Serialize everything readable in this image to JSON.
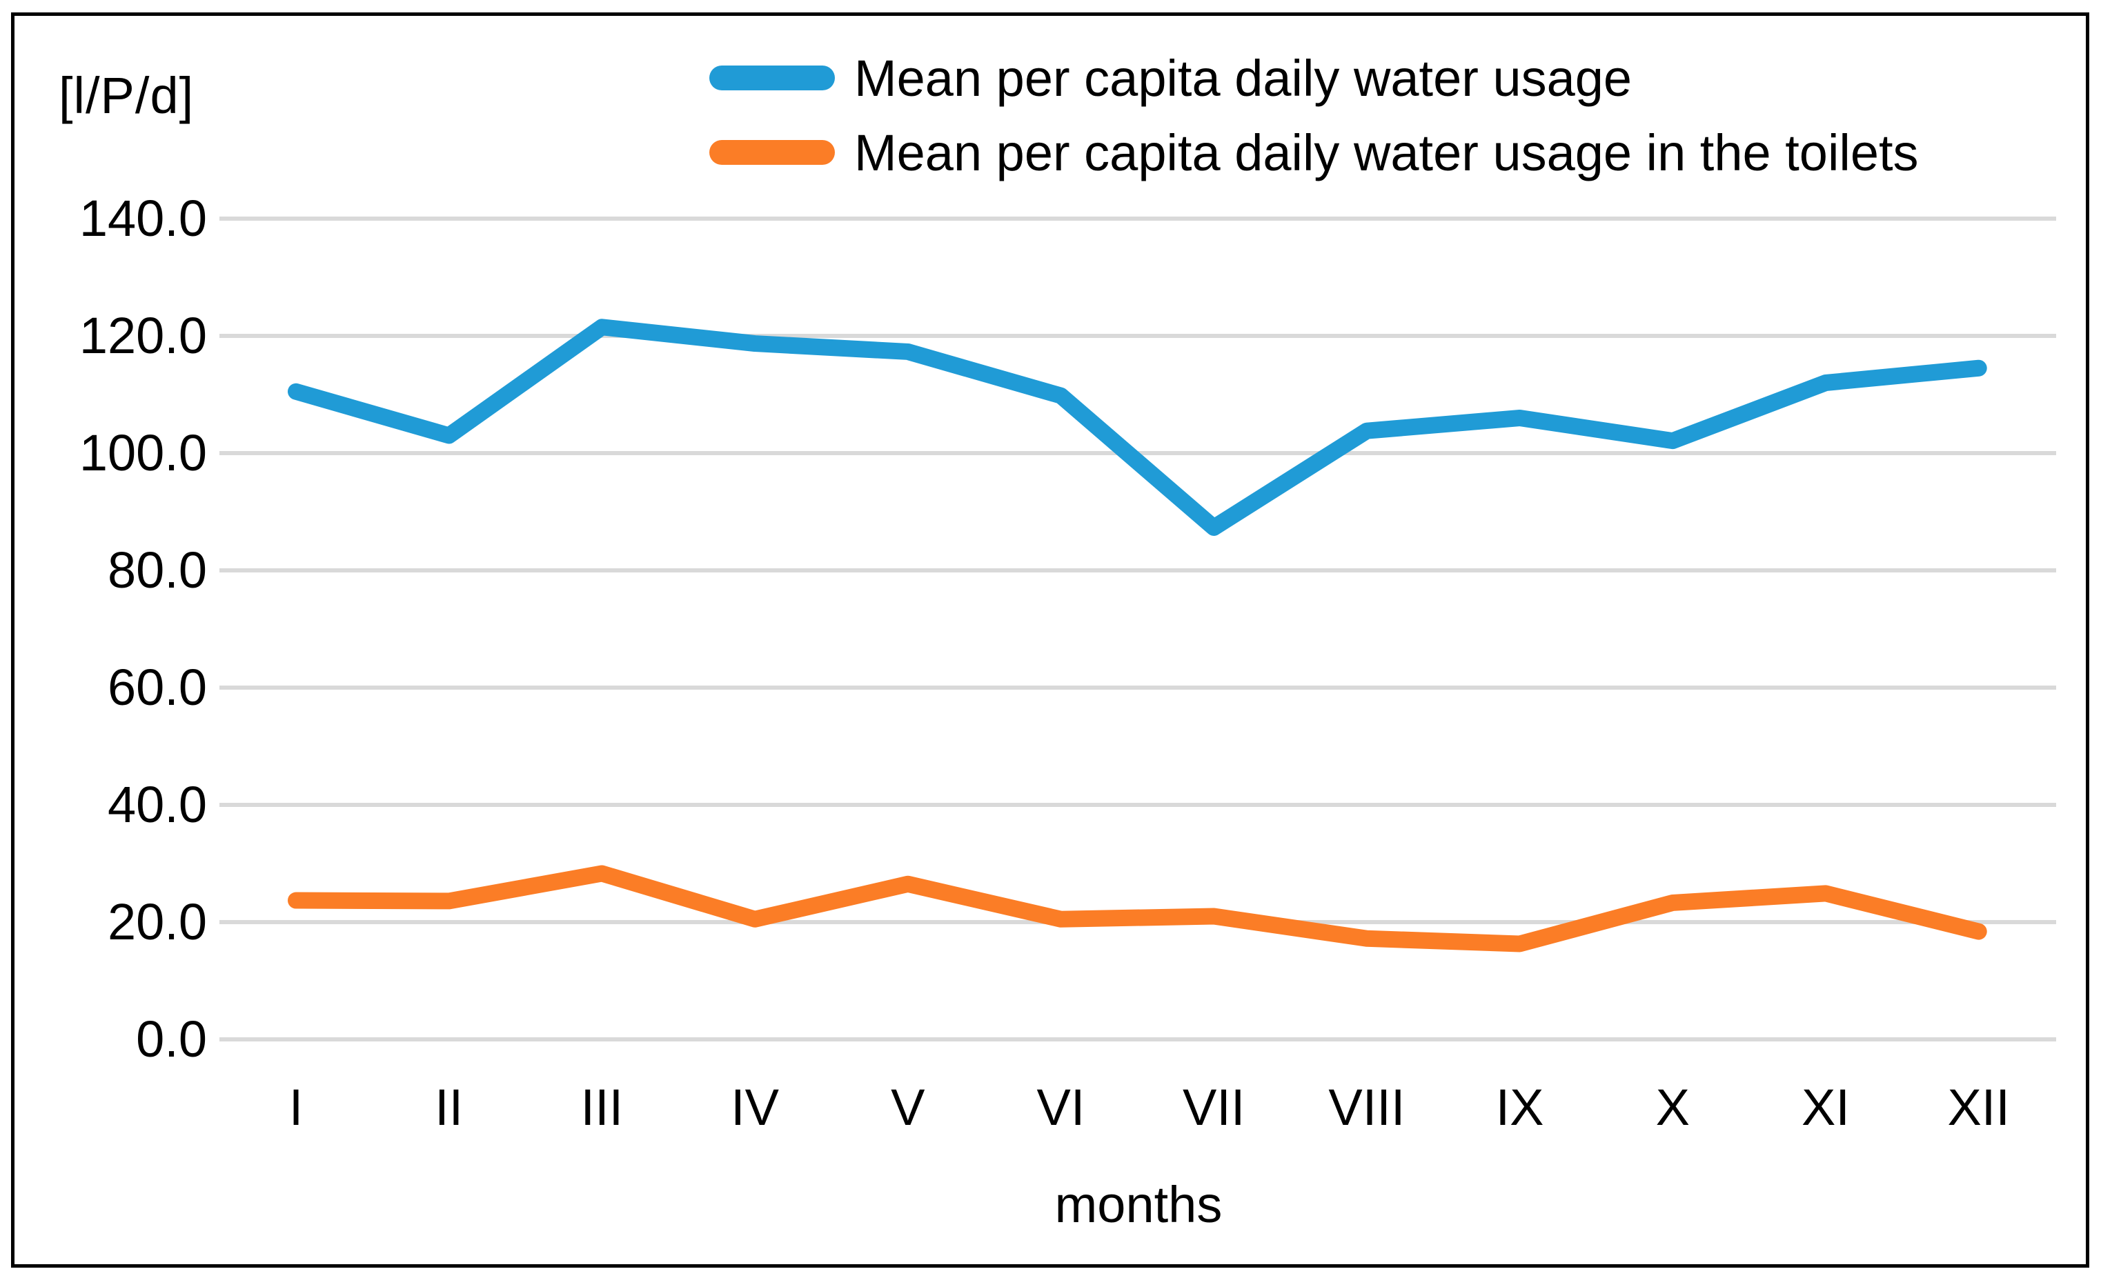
{
  "page": {
    "background": "#FFFFFF",
    "border_color": "#000000"
  },
  "y_axis": {
    "unit_label": "[l/P/d]",
    "tick_labels": [
      "0.0",
      "20.0",
      "40.0",
      "60.0",
      "80.0",
      "100.0",
      "120.0",
      "140.0"
    ]
  },
  "x_axis": {
    "title": "months"
  },
  "legend": {
    "items": [
      {
        "label": "Mean per capita daily water usage",
        "color": "#209BD6"
      },
      {
        "label": "Mean per capita daily water usage in the toilets",
        "color": "#FB7D26"
      }
    ]
  },
  "chart_data": {
    "type": "line",
    "title": "",
    "categories": [
      "I",
      "II",
      "III",
      "IV",
      "V",
      "VI",
      "VII",
      "VIII",
      "IX",
      "X",
      "XI",
      "XII"
    ],
    "series": [
      {
        "name": "Mean per capita daily water usage",
        "color": "#209BD6",
        "values": [
          110.5,
          103.0,
          121.5,
          118.7,
          117.3,
          109.8,
          87.3,
          103.8,
          106.0,
          102.1,
          112.0,
          114.5
        ]
      },
      {
        "name": "Mean per capita daily water usage in the toilets",
        "color": "#FB7D26",
        "values": [
          23.7,
          23.6,
          28.3,
          20.5,
          26.5,
          20.5,
          21.0,
          17.2,
          16.3,
          23.3,
          24.9,
          18.4
        ]
      }
    ],
    "xlabel": "months",
    "ylabel": "[l/P/d]",
    "ylim": [
      0,
      140
    ],
    "yticks": [
      0,
      20,
      40,
      60,
      80,
      100,
      120,
      140
    ],
    "grid": true,
    "gridline_color": "#D9D9D9",
    "legend_position": "top-center"
  }
}
